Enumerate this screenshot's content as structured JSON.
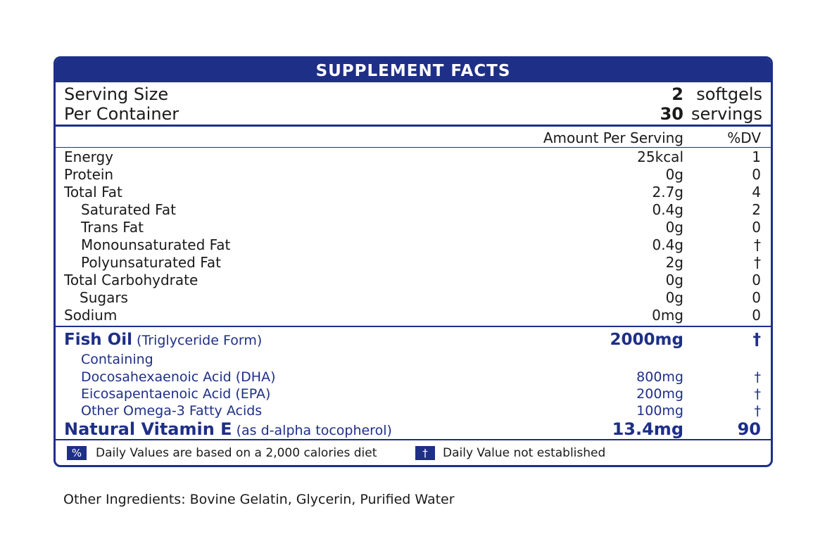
{
  "title": "SUPPLEMENT FACTS",
  "serving": {
    "size_label": "Serving Size",
    "size_value": "2",
    "size_unit": "softgels",
    "container_label": "Per Container",
    "container_value": "30",
    "container_unit": "servings"
  },
  "header": {
    "amount": "Amount Per Serving",
    "dv": "%DV"
  },
  "nutrients": [
    {
      "name": "Energy",
      "amount": "25kcal",
      "dv": "1"
    },
    {
      "name": "Protein",
      "amount": "0g",
      "dv": "0"
    },
    {
      "name": "Total Fat",
      "amount": "2.7g",
      "dv": "4"
    },
    {
      "name": "Saturated Fat",
      "amount": "0.4g",
      "dv": "2"
    },
    {
      "name": "Trans Fat",
      "amount": "0g",
      "dv": "0"
    },
    {
      "name": "Monounsaturated Fat",
      "amount": "0.4g",
      "dv": "†"
    },
    {
      "name": "Polyunsaturated Fat",
      "amount": "2g",
      "dv": "†"
    },
    {
      "name": "Total Carbohydrate",
      "amount": "0g",
      "dv": "0"
    },
    {
      "name": "Sugars",
      "amount": "0g",
      "dv": "0"
    },
    {
      "name": "Sodium",
      "amount": "0mg",
      "dv": "0"
    }
  ],
  "fish_oil": {
    "name": "Fish Oil",
    "form": "(Triglyceride Form)",
    "amount": "2000mg",
    "dv": "†",
    "containing": "Containing",
    "items": [
      {
        "name": "Docosahexaenoic Acid (DHA)",
        "amount": "800mg",
        "dv": "†"
      },
      {
        "name": "Eicosapentaenoic Acid (EPA)",
        "amount": "200mg",
        "dv": "†"
      },
      {
        "name": "Other Omega-3 Fatty Acids",
        "amount": "100mg",
        "dv": "†"
      }
    ]
  },
  "vitamin_e": {
    "name": "Natural Vitamin E",
    "form": "(as d-alpha tocopherol)",
    "amount": "13.4mg",
    "dv": "90"
  },
  "footer": {
    "percent_symbol": "%",
    "percent_text": "Daily Values are based on a 2,000 calories diet",
    "dagger_symbol": "†",
    "dagger_text": "Daily Value not established"
  },
  "other_ingredients": "Other Ingredients: Bovine Gelatin, Glycerin, Purified Water",
  "colors": {
    "brand": "#1e2f87"
  }
}
